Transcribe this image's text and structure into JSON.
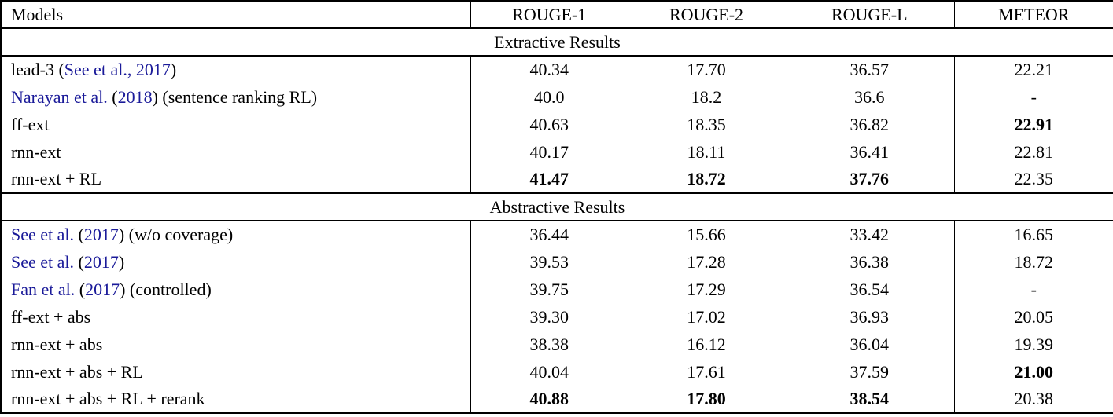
{
  "colors": {
    "citation_link": "#1a1a99",
    "text": "#000000",
    "background": "#ffffff",
    "border": "#000000"
  },
  "table": {
    "columns": [
      "Models",
      "ROUGE-1",
      "ROUGE-2",
      "ROUGE-L",
      "METEOR"
    ],
    "missing_value": "-",
    "sections": [
      {
        "title": "Extractive Results",
        "rows": [
          {
            "model": [
              {
                "text": "lead-3 ("
              },
              {
                "text": "See et al., 2017",
                "cite": true
              },
              {
                "text": ")"
              }
            ],
            "values": [
              {
                "text": "40.34"
              },
              {
                "text": "17.70"
              },
              {
                "text": "36.57"
              },
              {
                "text": "22.21"
              }
            ]
          },
          {
            "model": [
              {
                "text": "Narayan et al.",
                "cite": true
              },
              {
                "text": " ("
              },
              {
                "text": "2018",
                "cite": true
              },
              {
                "text": ") (sentence ranking RL)"
              }
            ],
            "values": [
              {
                "text": "40.0"
              },
              {
                "text": "18.2"
              },
              {
                "text": "36.6"
              },
              {
                "text": "-"
              }
            ]
          },
          {
            "model": [
              {
                "text": "ff-ext"
              }
            ],
            "values": [
              {
                "text": "40.63"
              },
              {
                "text": "18.35"
              },
              {
                "text": "36.82"
              },
              {
                "text": "22.91",
                "bold": true
              }
            ]
          },
          {
            "model": [
              {
                "text": "rnn-ext"
              }
            ],
            "values": [
              {
                "text": "40.17"
              },
              {
                "text": "18.11"
              },
              {
                "text": "36.41"
              },
              {
                "text": "22.81"
              }
            ]
          },
          {
            "model": [
              {
                "text": "rnn-ext + RL"
              }
            ],
            "values": [
              {
                "text": "41.47",
                "bold": true
              },
              {
                "text": "18.72",
                "bold": true
              },
              {
                "text": "37.76",
                "bold": true
              },
              {
                "text": "22.35"
              }
            ]
          }
        ]
      },
      {
        "title": "Abstractive Results",
        "rows": [
          {
            "model": [
              {
                "text": "See et al.",
                "cite": true
              },
              {
                "text": " ("
              },
              {
                "text": "2017",
                "cite": true
              },
              {
                "text": ") (w/o coverage)"
              }
            ],
            "values": [
              {
                "text": "36.44"
              },
              {
                "text": "15.66"
              },
              {
                "text": "33.42"
              },
              {
                "text": "16.65"
              }
            ]
          },
          {
            "model": [
              {
                "text": "See et al.",
                "cite": true
              },
              {
                "text": " ("
              },
              {
                "text": "2017",
                "cite": true
              },
              {
                "text": ")"
              }
            ],
            "values": [
              {
                "text": "39.53"
              },
              {
                "text": "17.28"
              },
              {
                "text": "36.38"
              },
              {
                "text": "18.72"
              }
            ]
          },
          {
            "model": [
              {
                "text": "Fan et al.",
                "cite": true
              },
              {
                "text": " ("
              },
              {
                "text": "2017",
                "cite": true
              },
              {
                "text": ") (controlled)"
              }
            ],
            "values": [
              {
                "text": "39.75"
              },
              {
                "text": "17.29"
              },
              {
                "text": "36.54"
              },
              {
                "text": "-"
              }
            ]
          },
          {
            "model": [
              {
                "text": "ff-ext + abs"
              }
            ],
            "values": [
              {
                "text": "39.30"
              },
              {
                "text": "17.02"
              },
              {
                "text": "36.93"
              },
              {
                "text": "20.05"
              }
            ]
          },
          {
            "model": [
              {
                "text": "rnn-ext + abs"
              }
            ],
            "values": [
              {
                "text": "38.38"
              },
              {
                "text": "16.12"
              },
              {
                "text": "36.04"
              },
              {
                "text": "19.39"
              }
            ]
          },
          {
            "model": [
              {
                "text": "rnn-ext + abs + RL"
              }
            ],
            "values": [
              {
                "text": "40.04"
              },
              {
                "text": "17.61"
              },
              {
                "text": "37.59"
              },
              {
                "text": "21.00",
                "bold": true
              }
            ]
          },
          {
            "model": [
              {
                "text": "rnn-ext + abs + RL + rerank"
              }
            ],
            "values": [
              {
                "text": "40.88",
                "bold": true
              },
              {
                "text": "17.80",
                "bold": true
              },
              {
                "text": "38.54",
                "bold": true
              },
              {
                "text": "20.38"
              }
            ]
          }
        ]
      }
    ]
  }
}
